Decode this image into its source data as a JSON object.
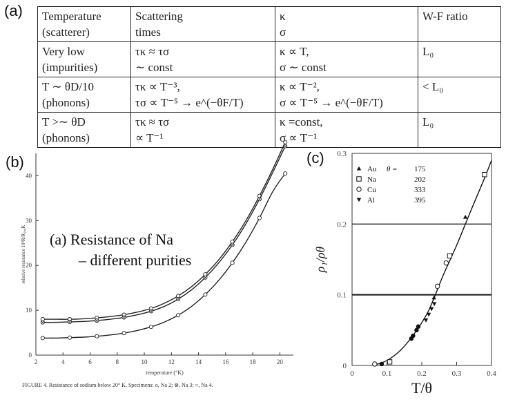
{
  "labels": {
    "a": "(a)",
    "b": "(b)",
    "c": "(c)"
  },
  "table": {
    "header": [
      [
        "Temperature",
        "(scatterer)"
      ],
      [
        "Scattering",
        "times"
      ],
      [
        "κ",
        "σ"
      ],
      [
        "W-F ratio",
        ""
      ]
    ],
    "rows": [
      [
        [
          "Very low",
          "(impurities)"
        ],
        [
          "τκ ≈ τσ",
          "∼ const"
        ],
        [
          "κ ∝ T,",
          "σ ∼ const"
        ],
        [
          "L₀",
          ""
        ]
      ],
      [
        [
          "T ∼ θD/10",
          "(phonons)"
        ],
        [
          "τκ ∝ T⁻³,",
          "τσ ∝ T⁻⁵ → e^(−θF/T)"
        ],
        [
          "κ ∝ T⁻²,",
          "σ ∝ T⁻⁵ → e^(−θF/T)"
        ],
        [
          "< L₀",
          ""
        ]
      ],
      [
        [
          "T >∼ θD",
          "(phonons)"
        ],
        [
          "τκ ≈ τσ",
          "∝ T⁻¹"
        ],
        [
          "κ =const,",
          "σ ∝ T⁻¹"
        ],
        [
          "L₀",
          ""
        ]
      ]
    ]
  },
  "chart_data": [
    {
      "type": "line",
      "panel": "b",
      "xlabel": "temperature (°K)",
      "ylabel": "relative resistance 10⁴R/R₂₉₀K",
      "xlim": [
        2,
        21
      ],
      "ylim": [
        0,
        45
      ],
      "xticks": [
        2,
        4,
        6,
        8,
        10,
        12,
        14,
        16,
        18,
        20
      ],
      "yticks": [
        0,
        10,
        20,
        30,
        40
      ],
      "annotation": [
        "(a)  Resistance of Na",
        "– different purities"
      ],
      "caption": "FIGURE 4.  Resistance of sodium below 20° K.  Specimens: o, Na 2; ⊗, Na 3; ○, Na 4.",
      "series": [
        {
          "name": "Na 2",
          "marker": "o",
          "x": [
            2.5,
            3.5,
            4.5,
            5.5,
            6.5,
            7.5,
            8.5,
            9.5,
            10.5,
            11.5,
            12.5,
            13.5,
            14.5,
            15.5,
            16.5,
            17.5,
            18.5,
            19.5,
            20.4
          ],
          "y": [
            8.0,
            8.0,
            8.0,
            8.1,
            8.3,
            8.6,
            9.0,
            9.6,
            10.4,
            11.6,
            13.2,
            15.3,
            18.0,
            21.3,
            25.3,
            30.0,
            35.5,
            41.6,
            47.5
          ]
        },
        {
          "name": "Na 3",
          "marker": "⊗",
          "x": [
            2.5,
            3.5,
            4.5,
            5.5,
            6.5,
            7.5,
            8.5,
            9.5,
            10.5,
            11.5,
            12.5,
            13.5,
            14.5,
            15.5,
            16.5,
            17.5,
            18.5,
            19.5,
            20.4
          ],
          "y": [
            7.3,
            7.3,
            7.4,
            7.5,
            7.7,
            8.0,
            8.4,
            9.0,
            9.8,
            10.9,
            12.5,
            14.6,
            17.3,
            20.6,
            24.6,
            29.3,
            34.8,
            40.9,
            46.6
          ]
        },
        {
          "name": "Na 4",
          "marker": "○",
          "x": [
            2.5,
            3.5,
            4.5,
            5.5,
            6.5,
            7.5,
            8.5,
            9.5,
            10.5,
            11.5,
            12.5,
            13.5,
            14.5,
            15.5,
            16.5,
            17.5,
            18.5,
            19.5,
            20.4
          ],
          "y": [
            3.8,
            3.8,
            3.9,
            4.0,
            4.2,
            4.5,
            4.9,
            5.5,
            6.3,
            7.4,
            8.9,
            10.9,
            13.5,
            16.7,
            20.6,
            25.2,
            30.6,
            36.6,
            40.5
          ]
        }
      ]
    },
    {
      "type": "scatter",
      "panel": "c",
      "xlabel": "T/θ",
      "ylabel": "ρ₁/ρθ",
      "xlim": [
        0,
        0.4
      ],
      "ylim": [
        0,
        0.3
      ],
      "xticks": [
        0,
        0.1,
        0.2,
        0.3,
        0.4
      ],
      "yticks": [
        0,
        0.1,
        0.2,
        0.3
      ],
      "hlines": [
        0.1,
        0.2
      ],
      "legend_title": "θ =",
      "series": [
        {
          "name": "Au",
          "theta": "175",
          "marker": "▲",
          "x": [
            0.235,
            0.325
          ],
          "y": [
            0.096,
            0.21
          ]
        },
        {
          "name": "Na",
          "theta": "202",
          "marker": "□",
          "x": [
            0.108,
            0.28,
            0.38
          ],
          "y": [
            0.005,
            0.155,
            0.27
          ]
        },
        {
          "name": "Cu",
          "theta": "333",
          "marker": "○",
          "x": [
            0.065,
            0.245,
            0.27
          ],
          "y": [
            0.002,
            0.112,
            0.145
          ]
        },
        {
          "name": "Al",
          "theta": "395",
          "marker": "▼",
          "x": [
            0.212,
            0.22,
            0.228,
            0.236
          ],
          "y": [
            0.064,
            0.072,
            0.08,
            0.087
          ]
        },
        {
          "name": "",
          "marker": "●",
          "x": [
            0.085,
            0.17,
            0.175,
            0.185,
            0.19
          ],
          "y": [
            0.002,
            0.038,
            0.042,
            0.05,
            0.055
          ]
        }
      ],
      "curve": {
        "x": [
          0.06,
          0.1,
          0.14,
          0.18,
          0.22,
          0.26,
          0.3,
          0.34,
          0.38,
          0.4
        ],
        "y": [
          0.0,
          0.007,
          0.022,
          0.046,
          0.078,
          0.126,
          0.17,
          0.218,
          0.265,
          0.29
        ]
      }
    }
  ]
}
